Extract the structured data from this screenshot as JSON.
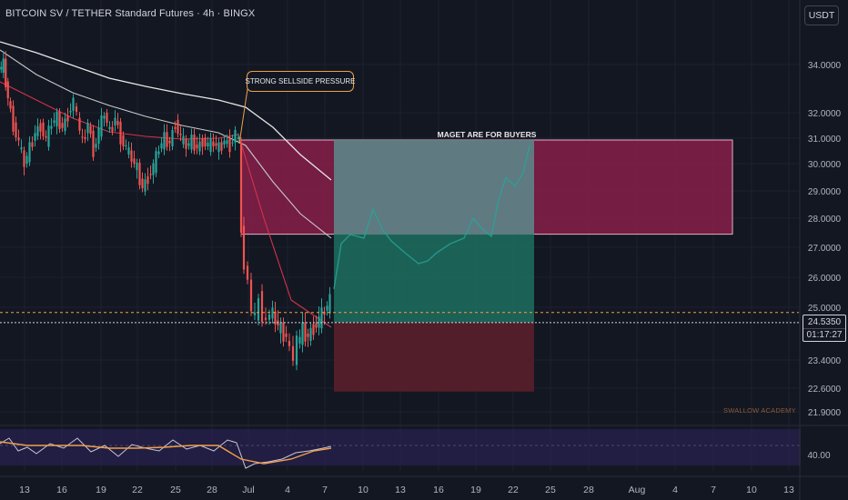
{
  "header": {
    "title": "BITCOIN SV / TETHER Standard Futures · 4h · BINGX",
    "currency_button": "USDT"
  },
  "annotations": {
    "callout": "STRONG SELLSIDE PRESSURE",
    "zone_label": "MAGET ARE FOR BUYERS",
    "watermark": "SWALLOW ACADEMY"
  },
  "price_axis": {
    "labels": [
      "34.0000",
      "32.0000",
      "31.0000",
      "30.0000",
      "29.0000",
      "28.0000",
      "27.0000",
      "26.0000",
      "25.0000",
      "23.4000",
      "22.6000",
      "21.9000"
    ]
  },
  "current_price": {
    "price": "24.5350",
    "countdown": "01:17:27"
  },
  "rsi_axis": {
    "label": "40.00"
  },
  "time_axis": {
    "labels": [
      "13",
      "16",
      "19",
      "22",
      "25",
      "28",
      "Jul",
      "4",
      "7",
      "10",
      "13",
      "16",
      "19",
      "22",
      "25",
      "28",
      "Aug",
      "4",
      "7",
      "10",
      "13"
    ]
  },
  "colors": {
    "background": "#131722",
    "bull": "#26a69a",
    "bear": "#ef5350",
    "supply_zone": "#8b1e4a",
    "long_target": "#1f6f5f",
    "long_stop": "#5a1f2a",
    "rsi": "#f0a04a",
    "rsi_band": "#2a2150",
    "callout_border": "#f0a04a"
  },
  "chart_data": {
    "type": "candlestick",
    "title": "BITCOIN SV / TETHER Standard Futures · 4h · BINGX",
    "ylim": [
      21.9,
      34.5
    ],
    "y_ticks": [
      34.0,
      32.0,
      31.0,
      30.0,
      29.0,
      28.0,
      27.0,
      26.0,
      25.0,
      23.4,
      22.6,
      21.9
    ],
    "x_labels": [
      "13",
      "16",
      "19",
      "22",
      "25",
      "28",
      "Jul",
      "4",
      "7",
      "10",
      "13",
      "16",
      "19",
      "22",
      "25",
      "28",
      "Aug",
      "4",
      "7",
      "10",
      "13"
    ],
    "current_price": 24.535,
    "close_path": [
      [
        0,
        33.8
      ],
      [
        5,
        34.0
      ],
      [
        10,
        32.6
      ],
      [
        16,
        31.5
      ],
      [
        22,
        30.8
      ],
      [
        28,
        30.0
      ],
      [
        34,
        30.6
      ],
      [
        40,
        31.2
      ],
      [
        46,
        31.5
      ],
      [
        52,
        30.9
      ],
      [
        58,
        31.6
      ],
      [
        64,
        31.8
      ],
      [
        70,
        31.4
      ],
      [
        76,
        31.9
      ],
      [
        82,
        32.5
      ],
      [
        86,
        31.8
      ],
      [
        92,
        30.8
      ],
      [
        98,
        31.6
      ],
      [
        104,
        30.5
      ],
      [
        110,
        31.3
      ],
      [
        116,
        32.0
      ],
      [
        122,
        31.2
      ],
      [
        128,
        31.8
      ],
      [
        134,
        31.0
      ],
      [
        140,
        30.6
      ],
      [
        146,
        30.2
      ],
      [
        152,
        29.8
      ],
      [
        158,
        29.1
      ],
      [
        164,
        29.5
      ],
      [
        170,
        29.9
      ],
      [
        176,
        30.6
      ],
      [
        182,
        31.0
      ],
      [
        188,
        30.8
      ],
      [
        194,
        31.6
      ],
      [
        200,
        31.0
      ],
      [
        206,
        30.7
      ],
      [
        212,
        30.9
      ],
      [
        218,
        30.6
      ],
      [
        224,
        30.9
      ],
      [
        230,
        30.7
      ],
      [
        236,
        30.8
      ],
      [
        242,
        30.6
      ],
      [
        248,
        30.9
      ],
      [
        254,
        30.7
      ],
      [
        260,
        31.2
      ],
      [
        264,
        30.8
      ],
      [
        266,
        27.5
      ],
      [
        270,
        26.5
      ],
      [
        274,
        25.8
      ],
      [
        278,
        25.0
      ],
      [
        282,
        24.6
      ],
      [
        286,
        25.3
      ],
      [
        290,
        24.8
      ],
      [
        294,
        24.5
      ],
      [
        298,
        24.9
      ],
      [
        304,
        24.6
      ],
      [
        310,
        24.3
      ],
      [
        316,
        24.1
      ],
      [
        320,
        23.7
      ],
      [
        324,
        23.5
      ],
      [
        328,
        23.9
      ],
      [
        334,
        24.3
      ],
      [
        340,
        24.1
      ],
      [
        346,
        24.4
      ],
      [
        352,
        24.6
      ],
      [
        358,
        24.9
      ],
      [
        364,
        25.2
      ]
    ],
    "rsi_label": "40.00"
  }
}
